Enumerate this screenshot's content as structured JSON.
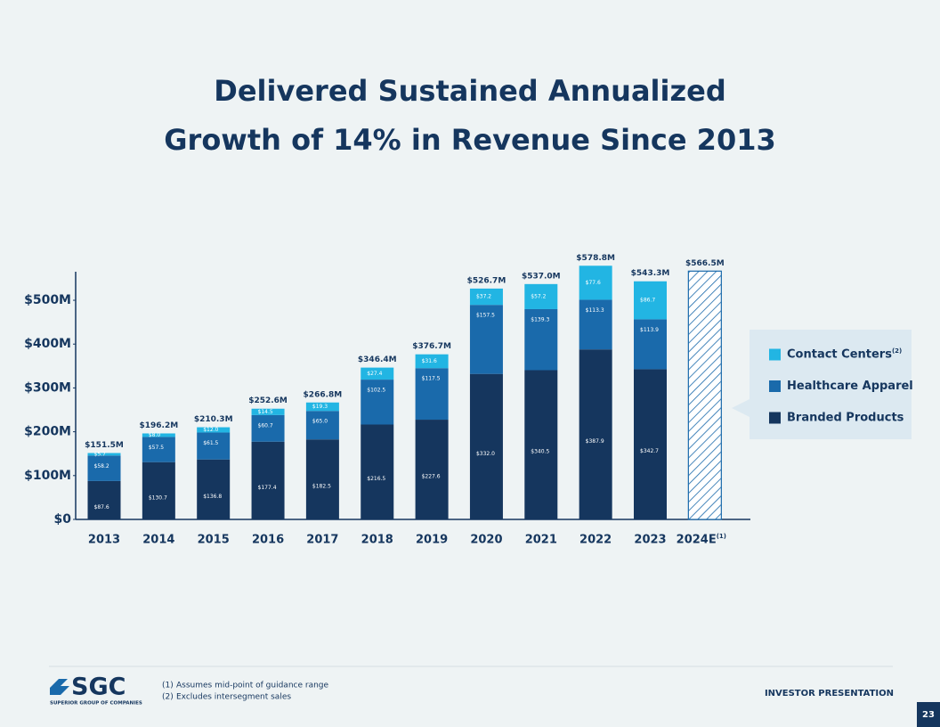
{
  "chart_data": {
    "type": "stacked_bar",
    "title": [
      "Delivered Sustained Annualized",
      "Growth of 14% in Revenue Since 2013"
    ],
    "categories": [
      "2013",
      "2014",
      "2015",
      "2016",
      "2017",
      "2018",
      "2019",
      "2020",
      "2021",
      "2022",
      "2023",
      "2024E"
    ],
    "category_notes": [
      null,
      null,
      null,
      null,
      null,
      null,
      null,
      null,
      null,
      null,
      null,
      "(1)"
    ],
    "series": [
      {
        "name": "Branded Products",
        "color": "#15365e",
        "values": [
          87.6,
          130.7,
          136.8,
          177.4,
          182.5,
          216.5,
          227.6,
          332.0,
          340.5,
          387.9,
          342.7,
          null
        ],
        "value_labels": [
          "$87.6",
          "$130.7",
          "$136.8",
          "$177.4",
          "$182.5",
          "$216.5",
          "$227.6",
          "$332.0",
          "$340.5",
          "$387.9",
          "$342.7",
          null
        ]
      },
      {
        "name": "Healthcare Apparel",
        "color": "#1a6aab",
        "values": [
          58.2,
          57.5,
          61.5,
          60.7,
          65.0,
          102.5,
          117.5,
          157.5,
          139.3,
          113.3,
          113.9,
          null
        ],
        "value_labels": [
          "$58.2",
          "$57.5",
          "$61.5",
          "$60.7",
          "$65.0",
          "$102.5",
          "$117.5",
          "$157.5",
          "$139.3",
          "$113.3",
          "$113.9",
          null
        ]
      },
      {
        "name": "Contact Centers",
        "note": "(2)",
        "color": "#22b5e3",
        "values": [
          5.7,
          8.0,
          12.0,
          14.5,
          19.3,
          27.4,
          31.6,
          37.2,
          57.2,
          77.6,
          86.7,
          null
        ],
        "value_labels": [
          "$5.7",
          "$8.0",
          "$12.0",
          "$14.5",
          "$19.3",
          "$27.4",
          "$31.6",
          "$37.2",
          "$57.2",
          "$77.6",
          "$86.7",
          null
        ]
      }
    ],
    "totals": {
      "values": [
        151.5,
        196.2,
        210.3,
        252.6,
        266.8,
        346.4,
        376.7,
        526.7,
        537.0,
        578.8,
        543.3,
        566.5
      ],
      "value_labels": [
        "$151.5M",
        "$196.2M",
        "$210.3M",
        "$252.6M",
        "$266.8M",
        "$346.4M",
        "$376.7M",
        "$526.7M",
        "$537.0M",
        "$578.8M",
        "$543.3M",
        "$566.5M"
      ]
    },
    "ylim": [
      0,
      570
    ],
    "yticks": [
      {
        "value": 0,
        "label": "$0"
      },
      {
        "value": 100,
        "label": "$100M"
      },
      {
        "value": 200,
        "label": "$200M"
      },
      {
        "value": 300,
        "label": "$300M"
      },
      {
        "value": 400,
        "label": "$400M"
      },
      {
        "value": 500,
        "label": "$500M"
      }
    ],
    "legend": "right"
  },
  "footer": {
    "logo": "SGC",
    "company": "SUPERIOR GROUP OF COMPANIES",
    "footnotes": [
      {
        "marker": "(1)",
        "text": "Assumes mid-point of guidance range"
      },
      {
        "marker": "(2)",
        "text": "Excludes intersegment sales"
      }
    ],
    "label": "INVESTOR PRESENTATION",
    "page": "23"
  }
}
